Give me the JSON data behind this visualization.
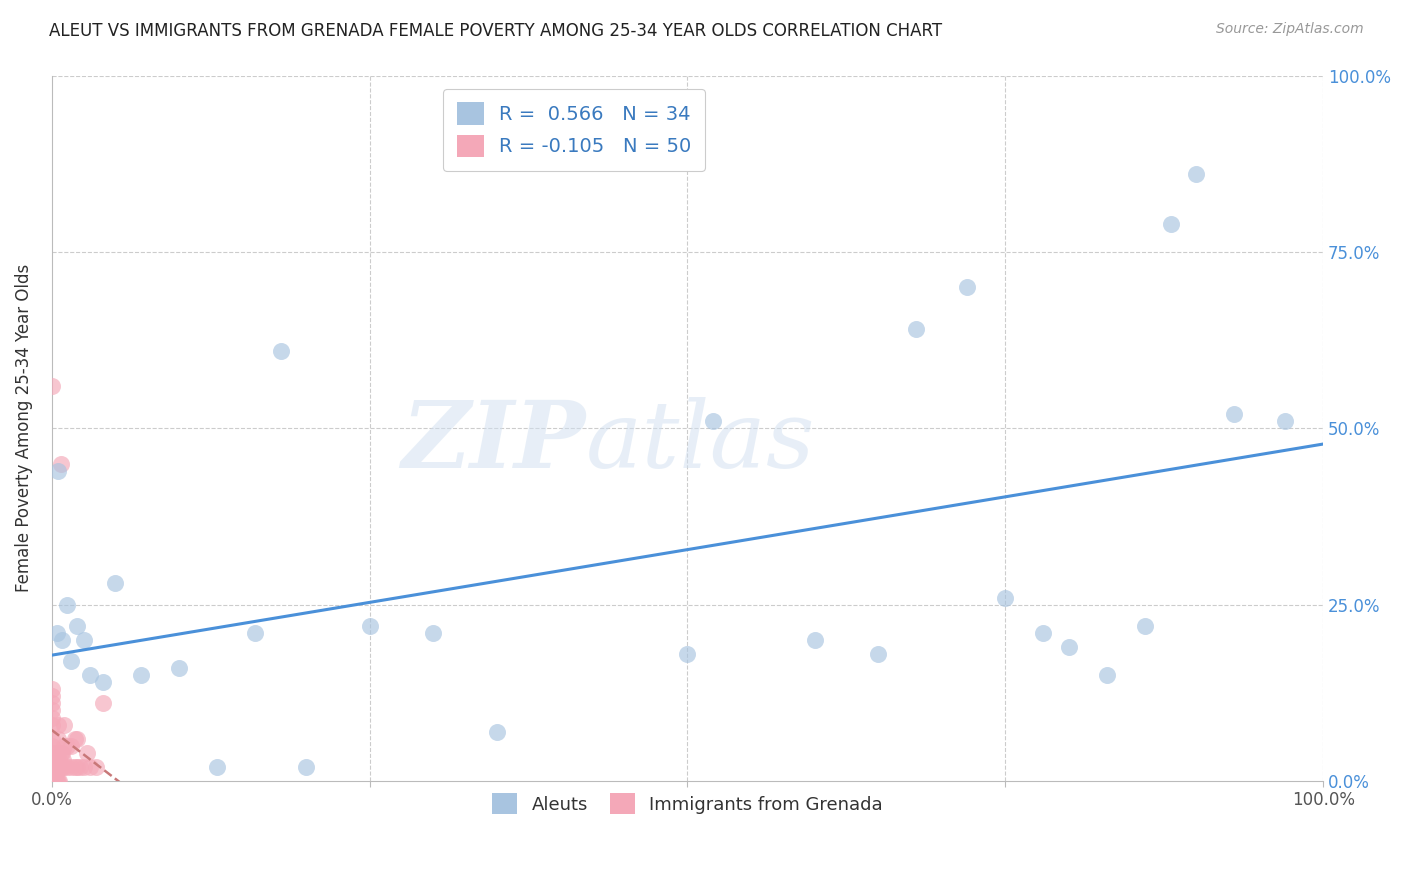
{
  "title": "ALEUT VS IMMIGRANTS FROM GRENADA FEMALE POVERTY AMONG 25-34 YEAR OLDS CORRELATION CHART",
  "source": "Source: ZipAtlas.com",
  "ylabel": "Female Poverty Among 25-34 Year Olds",
  "xlim": [
    0,
    1.0
  ],
  "ylim": [
    0,
    1.0
  ],
  "blue_color": "#a8c4e0",
  "pink_color": "#f4a8b8",
  "blue_line_color": "#4a90d9",
  "pink_line_color": "#c87878",
  "legend_blue_fill": "#a8c4e0",
  "legend_pink_fill": "#f4a8b8",
  "R_blue": 0.566,
  "N_blue": 34,
  "R_pink": -0.105,
  "N_pink": 50,
  "blue_scatter_x": [
    0.004,
    0.005,
    0.008,
    0.012,
    0.015,
    0.02,
    0.025,
    0.03,
    0.04,
    0.05,
    0.07,
    0.1,
    0.13,
    0.16,
    0.18,
    0.2,
    0.25,
    0.3,
    0.35,
    0.5,
    0.52,
    0.6,
    0.65,
    0.68,
    0.72,
    0.75,
    0.78,
    0.8,
    0.83,
    0.86,
    0.88,
    0.9,
    0.93,
    0.97
  ],
  "blue_scatter_y": [
    0.21,
    0.44,
    0.2,
    0.25,
    0.17,
    0.22,
    0.2,
    0.15,
    0.14,
    0.28,
    0.15,
    0.16,
    0.02,
    0.21,
    0.61,
    0.02,
    0.22,
    0.21,
    0.07,
    0.18,
    0.51,
    0.2,
    0.18,
    0.64,
    0.7,
    0.26,
    0.21,
    0.19,
    0.15,
    0.22,
    0.79,
    0.86,
    0.52,
    0.51
  ],
  "pink_scatter_x": [
    0.0,
    0.0,
    0.0,
    0.0,
    0.0,
    0.0,
    0.0,
    0.0,
    0.0,
    0.0,
    0.0,
    0.0,
    0.0,
    0.0,
    0.003,
    0.003,
    0.003,
    0.004,
    0.004,
    0.004,
    0.005,
    0.005,
    0.005,
    0.005,
    0.005,
    0.006,
    0.006,
    0.007,
    0.007,
    0.007,
    0.008,
    0.008,
    0.009,
    0.01,
    0.01,
    0.01,
    0.012,
    0.012,
    0.015,
    0.015,
    0.018,
    0.018,
    0.02,
    0.02,
    0.022,
    0.025,
    0.028,
    0.03,
    0.035,
    0.04
  ],
  "pink_scatter_y": [
    0.0,
    0.01,
    0.02,
    0.03,
    0.04,
    0.05,
    0.06,
    0.08,
    0.09,
    0.1,
    0.11,
    0.12,
    0.13,
    0.56,
    0.0,
    0.01,
    0.02,
    0.0,
    0.02,
    0.04,
    0.0,
    0.02,
    0.04,
    0.06,
    0.08,
    0.0,
    0.03,
    0.02,
    0.04,
    0.45,
    0.02,
    0.04,
    0.03,
    0.02,
    0.05,
    0.08,
    0.02,
    0.05,
    0.02,
    0.05,
    0.02,
    0.06,
    0.02,
    0.06,
    0.02,
    0.02,
    0.04,
    0.02,
    0.02,
    0.11
  ],
  "watermark_line1": "ZIP",
  "watermark_line2": "atlas",
  "grid_color": "#cccccc",
  "bg_color": "#ffffff",
  "title_fontsize": 12,
  "source_fontsize": 10,
  "ylabel_fontsize": 12,
  "tick_fontsize": 12,
  "right_tick_color": "#4a90d9",
  "scatter_size": 150,
  "scatter_alpha": 0.65
}
